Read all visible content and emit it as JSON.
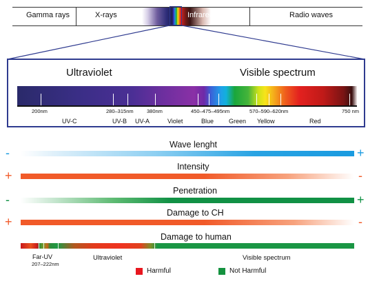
{
  "top_bar": {
    "segments": [
      "Gamma rays",
      "X-rays",
      "Infrared",
      "Radio waves"
    ]
  },
  "detail": {
    "left_title": "Ultraviolet",
    "right_title": "Visible spectrum",
    "wavelength_labels": [
      "200nm",
      "280–315nm",
      "380nm",
      "450–475–495nm",
      "570–590–620nm",
      "750 nm"
    ],
    "band_labels": [
      "UV-C",
      "UV-B",
      "UV-A",
      "Violet",
      "Blue",
      "Green",
      "Yellow",
      "Red"
    ]
  },
  "properties": [
    {
      "title": "Wave lenght",
      "left_sign": "-",
      "right_sign": "+",
      "left_color": "#1a9be0",
      "right_color": "#1a9be0"
    },
    {
      "title": "Intensity",
      "left_sign": "+",
      "right_sign": "-",
      "left_color": "#f15a29",
      "right_color": "#f15a29"
    },
    {
      "title": "Penetration",
      "left_sign": "-",
      "right_sign": "+",
      "left_color": "#119145",
      "right_color": "#119145"
    },
    {
      "title": "Damage to CH",
      "left_sign": "+",
      "right_sign": "-",
      "left_color": "#f15a29",
      "right_color": "#f15a29"
    }
  ],
  "damage_to_human": {
    "title": "Damage to human",
    "far_uv_label": "Far-UV",
    "far_uv_range": "207–222nm",
    "uv_label": "Ultraviolet",
    "visible_label": "Visible spectrum"
  },
  "legend": [
    {
      "label": "Harmful",
      "color": "#e8171f"
    },
    {
      "label": "Not Harmful",
      "color": "#14923f"
    }
  ]
}
